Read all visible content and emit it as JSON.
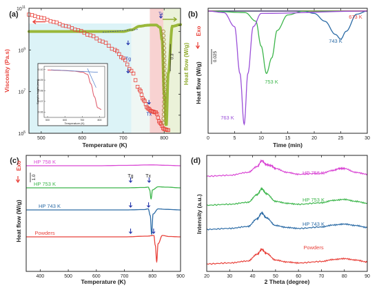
{
  "chart_data": [
    {
      "panel": "(a)",
      "type": "scatter",
      "xlabel": "Temperature (K)",
      "ylabel_left": "Viscosity (Pa.s)",
      "ylabel_right": "Heat flow (W/g)",
      "xlim": [
        470,
        840
      ],
      "xticks": [
        "500",
        "600",
        "700",
        "800"
      ],
      "ylim_log": [
        5,
        11
      ],
      "yticks": [
        "10^5",
        "10^7",
        "10^9",
        "10^11"
      ],
      "annotations": [
        "Tg",
        "Tx",
        "Tx",
        "0.3"
      ],
      "series": [
        {
          "role": "viscosity",
          "color": "#e8413a",
          "x": [
            470,
            500,
            530,
            560,
            590,
            620,
            650,
            680,
            700,
            720,
            740,
            750,
            760,
            770,
            780,
            790,
            800,
            810
          ],
          "y": [
            10.7,
            10.55,
            10.35,
            10.15,
            9.95,
            9.7,
            9.4,
            9.0,
            8.6,
            8.0,
            7.1,
            6.6,
            6.2,
            6.05,
            6.0,
            5.5,
            5.2,
            5.15
          ]
        },
        {
          "role": "heat-flow",
          "color": "#9ab83a",
          "x": [
            470,
            550,
            650,
            700,
            720,
            740,
            760,
            770,
            780,
            790,
            795,
            800,
            805,
            810,
            820,
            840
          ],
          "y": [
            0,
            0,
            0,
            0,
            0.08,
            0.25,
            0.3,
            0.31,
            0.31,
            0.2,
            -0.4,
            -3.0,
            -4.5,
            -2.0,
            0.25,
            0.33
          ]
        }
      ],
      "inset": {
        "xlabel": "Temperature (K)",
        "ylabel": "Sample height (mm)",
        "xticks": [
          "500",
          "600",
          "700",
          "800"
        ],
        "yticks": [
          "0.10",
          "0.09",
          "0.08",
          "0.07",
          "0.06"
        ],
        "x": [
          500,
          550,
          600,
          650,
          700,
          730,
          750,
          770,
          790,
          810
        ],
        "y": [
          0.0995,
          0.0993,
          0.099,
          0.0985,
          0.0975,
          0.0955,
          0.0865,
          0.0745,
          0.064,
          0.0625
        ]
      }
    },
    {
      "panel": "(b)",
      "type": "line",
      "xlabel": "Time (min)",
      "ylabel": "Heat flow (W/g)",
      "exo_label": "Exo",
      "scale_label": "0.025",
      "xlim": [
        0,
        30
      ],
      "xticks": [
        "0",
        "5",
        "10",
        "15",
        "20",
        "25",
        "30"
      ],
      "series": [
        {
          "name": "673 K",
          "color": "#e8413a",
          "x": [
            0,
            30
          ],
          "y": [
            0,
            0
          ]
        },
        {
          "name": "743 K",
          "color": "#2a6aa5",
          "x": [
            0,
            18,
            20,
            22,
            24,
            25,
            26,
            28,
            30
          ],
          "y": [
            0,
            0,
            -0.3,
            -1.3,
            -3.0,
            -3.6,
            -2.6,
            -0.4,
            0
          ]
        },
        {
          "name": "753 K",
          "color": "#3bb54a",
          "x": [
            0,
            7,
            9,
            10,
            11,
            12,
            13,
            15,
            18,
            30
          ],
          "y": [
            0,
            -0.2,
            -1.3,
            -4.5,
            -8.0,
            -6.0,
            -2.5,
            -0.5,
            0,
            0
          ]
        },
        {
          "name": "763 K",
          "color": "#9a4fd8",
          "x": [
            0,
            3,
            5,
            6,
            6.8,
            7.5,
            8.5,
            10,
            30
          ],
          "y": [
            0,
            -0.2,
            -2.0,
            -8.0,
            -14.5,
            -8.0,
            -2.0,
            -0.3,
            0
          ]
        }
      ]
    },
    {
      "panel": "(c)",
      "type": "line",
      "xlabel": "Temperature (K)",
      "ylabel": "Heat flow (W/g)",
      "exo_label": "Exo",
      "scale_label": "1.0",
      "xlim": [
        350,
        900
      ],
      "xticks": [
        "400",
        "500",
        "600",
        "700",
        "800",
        "900"
      ],
      "markers": [
        "Tg",
        "Tx"
      ],
      "series": [
        {
          "name": "HP 758 K",
          "color": "#d946d4",
          "x": [
            350,
            600,
            700,
            800,
            850,
            900
          ],
          "y": [
            0,
            0,
            0.05,
            0.12,
            0.06,
            0
          ]
        },
        {
          "name": "HP 753 K",
          "color": "#3bb54a",
          "x": [
            350,
            700,
            770,
            785,
            790,
            795,
            800,
            820,
            850,
            900
          ],
          "y": [
            0,
            0,
            0.05,
            0.1,
            -0.3,
            -1.6,
            -0.3,
            0.15,
            0.1,
            0
          ]
        },
        {
          "name": "HP 743 K",
          "color": "#2a6aa5",
          "x": [
            350,
            700,
            770,
            785,
            792,
            797,
            802,
            820,
            850,
            900
          ],
          "y": [
            0,
            0,
            0.05,
            0.15,
            -0.8,
            -3.5,
            -0.6,
            0.15,
            0.08,
            0
          ]
        },
        {
          "name": "Powders",
          "color": "#e8413a",
          "x": [
            350,
            700,
            780,
            805,
            810,
            815,
            820,
            835,
            860,
            900
          ],
          "y": [
            0,
            0,
            0.1,
            0.2,
            -1.2,
            -3.6,
            -1.0,
            0.2,
            0.05,
            0
          ]
        }
      ]
    },
    {
      "panel": "(d)",
      "type": "line",
      "xlabel": "2 Theta (degree)",
      "ylabel": "Intensity (a.u.)",
      "xlim": [
        20,
        90
      ],
      "xticks": [
        "20",
        "30",
        "40",
        "50",
        "60",
        "70",
        "80",
        "90"
      ],
      "series": [
        {
          "name": "HP 758 K",
          "color": "#d946d4",
          "x": [
            20,
            30,
            38,
            42,
            44,
            46,
            48,
            50,
            55,
            60,
            70,
            75,
            78,
            80,
            85,
            90
          ],
          "y": [
            0.2,
            0.3,
            0.6,
            1.2,
            1.8,
            1.4,
            1.3,
            1.0,
            0.6,
            0.4,
            0.5,
            0.8,
            1.0,
            1.0,
            0.6,
            0.4
          ]
        },
        {
          "name": "HP 753 K",
          "color": "#3bb54a",
          "x": [
            20,
            30,
            38,
            42,
            44,
            46,
            50,
            55,
            60,
            70,
            75,
            80,
            85,
            90
          ],
          "y": [
            0.2,
            0.3,
            0.5,
            1.3,
            1.9,
            1.4,
            0.6,
            0.4,
            0.3,
            0.45,
            0.7,
            0.8,
            0.6,
            0.4
          ]
        },
        {
          "name": "HP 743 K",
          "color": "#2a6aa5",
          "x": [
            20,
            30,
            38,
            42,
            44,
            46,
            50,
            55,
            60,
            70,
            75,
            80,
            85,
            90
          ],
          "y": [
            0.2,
            0.3,
            0.5,
            1.3,
            1.9,
            1.4,
            0.6,
            0.4,
            0.3,
            0.45,
            0.65,
            0.75,
            0.6,
            0.4
          ]
        },
        {
          "name": "Powders",
          "color": "#e8413a",
          "x": [
            20,
            30,
            38,
            42,
            44,
            46,
            50,
            55,
            60,
            70,
            75,
            80,
            85,
            90
          ],
          "y": [
            0.2,
            0.3,
            0.5,
            1.2,
            1.7,
            1.3,
            0.6,
            0.4,
            0.3,
            0.45,
            0.65,
            0.75,
            0.6,
            0.4
          ]
        }
      ]
    }
  ]
}
